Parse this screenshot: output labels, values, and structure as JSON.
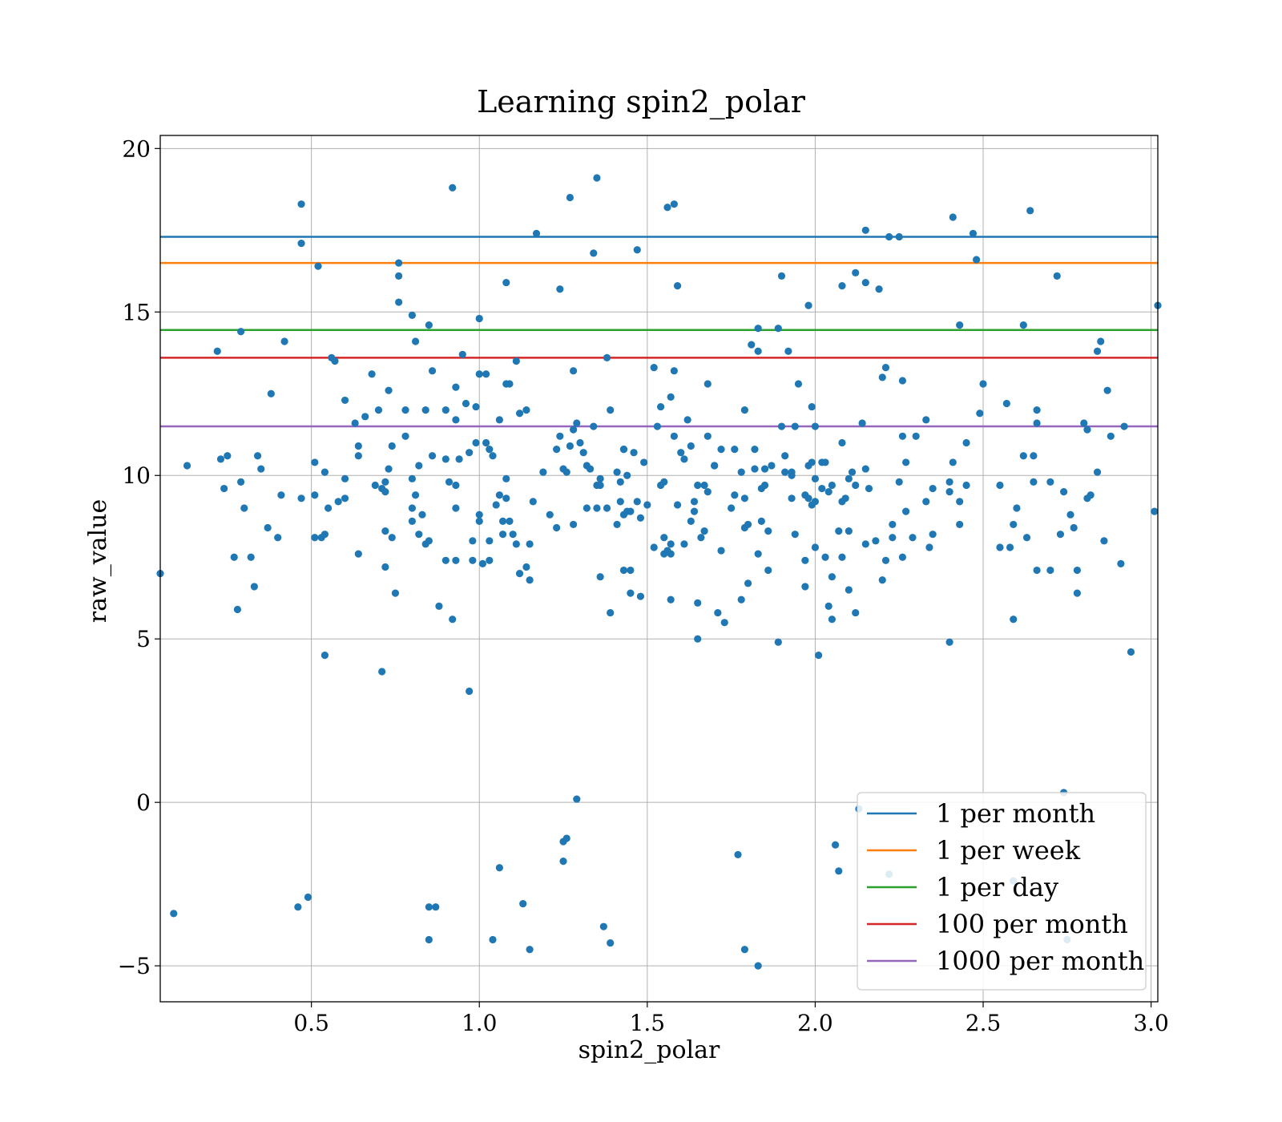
{
  "chart_data": {
    "type": "scatter",
    "title": "Learning spin2_polar",
    "xlabel": "spin2_polar",
    "ylabel": "raw_value",
    "xlim": [
      0.05,
      3.02
    ],
    "ylim": [
      -6.1,
      20.4
    ],
    "xticks": [
      0.5,
      1.0,
      1.5,
      2.0,
      2.5,
      3.0
    ],
    "xtick_labels": [
      "0.5",
      "1.0",
      "1.5",
      "2.0",
      "2.5",
      "3.0"
    ],
    "yticks": [
      -5,
      0,
      5,
      10,
      15,
      20
    ],
    "ytick_labels": [
      "−5",
      "0",
      "5",
      "10",
      "15",
      "20"
    ],
    "grid": true,
    "legend_position": "lower-right",
    "point_color": "#1f77b4",
    "hlines": [
      {
        "name": "1 per month",
        "y": 17.3,
        "color": "#1f77b4"
      },
      {
        "name": "1 per week",
        "y": 16.5,
        "color": "#ff7f0e"
      },
      {
        "name": "1 per day",
        "y": 14.45,
        "color": "#2ca02c"
      },
      {
        "name": "100 per month",
        "y": 13.6,
        "color": "#d62728"
      },
      {
        "name": "1000 per month",
        "y": 11.5,
        "color": "#9467bd"
      }
    ],
    "points": [
      [
        0.05,
        7.0
      ],
      [
        0.09,
        -3.4
      ],
      [
        0.13,
        10.3
      ],
      [
        0.22,
        13.8
      ],
      [
        0.23,
        10.5
      ],
      [
        0.25,
        10.6
      ],
      [
        0.24,
        9.6
      ],
      [
        0.27,
        7.5
      ],
      [
        0.28,
        5.9
      ],
      [
        0.29,
        14.4
      ],
      [
        0.29,
        9.8
      ],
      [
        0.3,
        9.0
      ],
      [
        0.32,
        7.5
      ],
      [
        0.33,
        6.6
      ],
      [
        0.34,
        10.6
      ],
      [
        0.35,
        10.2
      ],
      [
        0.37,
        8.4
      ],
      [
        0.38,
        12.5
      ],
      [
        0.4,
        8.1
      ],
      [
        0.41,
        9.4
      ],
      [
        0.42,
        14.1
      ],
      [
        0.46,
        -3.2
      ],
      [
        0.47,
        9.3
      ],
      [
        0.47,
        18.3
      ],
      [
        0.47,
        17.1
      ],
      [
        0.49,
        -2.9
      ],
      [
        0.51,
        8.1
      ],
      [
        0.51,
        9.4
      ],
      [
        0.51,
        10.4
      ],
      [
        0.52,
        16.4
      ],
      [
        0.53,
        8.1
      ],
      [
        0.54,
        8.2
      ],
      [
        0.54,
        10.1
      ],
      [
        0.54,
        4.5
      ],
      [
        0.55,
        9.0
      ],
      [
        0.56,
        13.6
      ],
      [
        0.57,
        13.5
      ],
      [
        0.58,
        9.2
      ],
      [
        0.6,
        9.3
      ],
      [
        0.6,
        9.9
      ],
      [
        0.6,
        12.3
      ],
      [
        0.63,
        11.6
      ],
      [
        0.64,
        10.9
      ],
      [
        0.64,
        10.6
      ],
      [
        0.64,
        7.6
      ],
      [
        0.66,
        11.8
      ],
      [
        0.68,
        13.1
      ],
      [
        0.69,
        9.7
      ],
      [
        0.7,
        12.0
      ],
      [
        0.71,
        4.0
      ],
      [
        0.71,
        9.6
      ],
      [
        0.72,
        9.8
      ],
      [
        0.72,
        9.5
      ],
      [
        0.72,
        8.3
      ],
      [
        0.72,
        7.2
      ],
      [
        0.73,
        10.2
      ],
      [
        0.73,
        12.6
      ],
      [
        0.74,
        8.1
      ],
      [
        0.74,
        10.9
      ],
      [
        0.75,
        6.4
      ],
      [
        0.76,
        16.5
      ],
      [
        0.76,
        16.1
      ],
      [
        0.76,
        15.3
      ],
      [
        0.78,
        12.0
      ],
      [
        0.78,
        11.2
      ],
      [
        0.8,
        14.9
      ],
      [
        0.8,
        9.9
      ],
      [
        0.8,
        9.0
      ],
      [
        0.8,
        8.6
      ],
      [
        0.81,
        9.4
      ],
      [
        0.81,
        14.1
      ],
      [
        0.82,
        8.2
      ],
      [
        0.82,
        10.3
      ],
      [
        0.83,
        8.8
      ],
      [
        0.84,
        7.9
      ],
      [
        0.84,
        12.0
      ],
      [
        0.85,
        -3.2
      ],
      [
        0.85,
        -4.2
      ],
      [
        0.85,
        14.6
      ],
      [
        0.85,
        8.0
      ],
      [
        0.86,
        13.2
      ],
      [
        0.86,
        10.6
      ],
      [
        0.87,
        -3.2
      ],
      [
        0.88,
        6.0
      ],
      [
        0.9,
        7.4
      ],
      [
        0.9,
        10.5
      ],
      [
        0.9,
        12.0
      ],
      [
        0.91,
        9.8
      ],
      [
        0.92,
        18.8
      ],
      [
        0.92,
        5.6
      ],
      [
        0.93,
        11.7
      ],
      [
        0.93,
        12.7
      ],
      [
        0.93,
        9.7
      ],
      [
        0.93,
        9.0
      ],
      [
        0.93,
        7.4
      ],
      [
        0.94,
        10.5
      ],
      [
        0.95,
        13.7
      ],
      [
        0.96,
        12.2
      ],
      [
        0.97,
        3.4
      ],
      [
        0.97,
        10.7
      ],
      [
        0.98,
        8.0
      ],
      [
        0.98,
        7.4
      ],
      [
        0.99,
        11.0
      ],
      [
        0.99,
        12.1
      ],
      [
        1.0,
        14.8
      ],
      [
        1.0,
        13.1
      ],
      [
        1.0,
        8.8
      ],
      [
        1.0,
        8.6
      ],
      [
        1.01,
        7.3
      ],
      [
        1.02,
        13.1
      ],
      [
        1.02,
        11.0
      ],
      [
        1.03,
        10.8
      ],
      [
        1.03,
        8.0
      ],
      [
        1.03,
        7.4
      ],
      [
        1.04,
        -4.2
      ],
      [
        1.04,
        10.6
      ],
      [
        1.05,
        9.1
      ],
      [
        1.06,
        -2.0
      ],
      [
        1.06,
        9.4
      ],
      [
        1.06,
        11.7
      ],
      [
        1.07,
        8.6
      ],
      [
        1.07,
        8.2
      ],
      [
        1.08,
        15.9
      ],
      [
        1.08,
        12.8
      ],
      [
        1.08,
        9.9
      ],
      [
        1.08,
        9.3
      ],
      [
        1.09,
        8.6
      ],
      [
        1.09,
        12.8
      ],
      [
        1.1,
        8.2
      ],
      [
        1.11,
        13.5
      ],
      [
        1.11,
        7.9
      ],
      [
        1.12,
        11.9
      ],
      [
        1.12,
        7.0
      ],
      [
        1.13,
        -3.1
      ],
      [
        1.14,
        12.0
      ],
      [
        1.14,
        7.2
      ],
      [
        1.15,
        7.9
      ],
      [
        1.15,
        6.8
      ],
      [
        1.15,
        -4.5
      ],
      [
        1.16,
        9.2
      ],
      [
        1.17,
        17.4
      ],
      [
        1.19,
        10.1
      ],
      [
        1.21,
        8.8
      ],
      [
        1.23,
        10.8
      ],
      [
        1.23,
        8.4
      ],
      [
        1.24,
        15.7
      ],
      [
        1.24,
        11.2
      ],
      [
        1.25,
        10.2
      ],
      [
        1.25,
        -1.2
      ],
      [
        1.25,
        -1.8
      ],
      [
        1.26,
        -1.1
      ],
      [
        1.26,
        10.1
      ],
      [
        1.27,
        18.5
      ],
      [
        1.27,
        10.9
      ],
      [
        1.28,
        13.2
      ],
      [
        1.28,
        11.4
      ],
      [
        1.28,
        8.5
      ],
      [
        1.29,
        0.1
      ],
      [
        1.29,
        11.6
      ],
      [
        1.3,
        11.0
      ],
      [
        1.31,
        10.7
      ],
      [
        1.32,
        10.3
      ],
      [
        1.32,
        9.0
      ],
      [
        1.33,
        10.2
      ],
      [
        1.34,
        16.8
      ],
      [
        1.34,
        11.5
      ],
      [
        1.35,
        19.1
      ],
      [
        1.35,
        9.7
      ],
      [
        1.35,
        9.0
      ],
      [
        1.36,
        9.7
      ],
      [
        1.36,
        9.9
      ],
      [
        1.36,
        6.9
      ],
      [
        1.37,
        -3.8
      ],
      [
        1.38,
        13.6
      ],
      [
        1.38,
        9.0
      ],
      [
        1.39,
        -4.3
      ],
      [
        1.39,
        5.8
      ],
      [
        1.39,
        12.0
      ],
      [
        1.41,
        8.5
      ],
      [
        1.41,
        10.1
      ],
      [
        1.42,
        9.2
      ],
      [
        1.42,
        9.8
      ],
      [
        1.43,
        10.8
      ],
      [
        1.43,
        10.8
      ],
      [
        1.43,
        8.8
      ],
      [
        1.43,
        7.1
      ],
      [
        1.44,
        8.9
      ],
      [
        1.44,
        10.0
      ],
      [
        1.45,
        7.1
      ],
      [
        1.45,
        8.9
      ],
      [
        1.45,
        6.4
      ],
      [
        1.46,
        10.7
      ],
      [
        1.47,
        16.9
      ],
      [
        1.47,
        9.2
      ],
      [
        1.48,
        6.3
      ],
      [
        1.48,
        8.7
      ],
      [
        1.49,
        10.4
      ],
      [
        1.5,
        9.1
      ],
      [
        1.52,
        13.3
      ],
      [
        1.52,
        7.8
      ],
      [
        1.53,
        11.5
      ],
      [
        1.54,
        9.7
      ],
      [
        1.54,
        12.1
      ],
      [
        1.55,
        9.8
      ],
      [
        1.55,
        8.1
      ],
      [
        1.55,
        7.6
      ],
      [
        1.56,
        18.2
      ],
      [
        1.56,
        7.7
      ],
      [
        1.57,
        6.2
      ],
      [
        1.57,
        7.9
      ],
      [
        1.57,
        7.6
      ],
      [
        1.57,
        12.4
      ],
      [
        1.58,
        13.2
      ],
      [
        1.58,
        18.3
      ],
      [
        1.58,
        11.2
      ],
      [
        1.59,
        15.8
      ],
      [
        1.59,
        9.1
      ],
      [
        1.6,
        10.7
      ],
      [
        1.61,
        10.5
      ],
      [
        1.61,
        7.9
      ],
      [
        1.62,
        11.7
      ],
      [
        1.63,
        8.6
      ],
      [
        1.63,
        10.9
      ],
      [
        1.64,
        9.2
      ],
      [
        1.64,
        8.9
      ],
      [
        1.65,
        5.0
      ],
      [
        1.65,
        6.1
      ],
      [
        1.65,
        9.7
      ],
      [
        1.66,
        8.1
      ],
      [
        1.67,
        9.7
      ],
      [
        1.67,
        8.3
      ],
      [
        1.68,
        12.8
      ],
      [
        1.68,
        11.2
      ],
      [
        1.68,
        9.5
      ],
      [
        1.7,
        10.3
      ],
      [
        1.7,
        10.3
      ],
      [
        1.71,
        5.8
      ],
      [
        1.72,
        7.7
      ],
      [
        1.72,
        10.8
      ],
      [
        1.73,
        5.5
      ],
      [
        1.75,
        9.0
      ],
      [
        1.76,
        9.4
      ],
      [
        1.76,
        10.8
      ],
      [
        1.77,
        -1.6
      ],
      [
        1.78,
        10.1
      ],
      [
        1.78,
        6.2
      ],
      [
        1.79,
        12.0
      ],
      [
        1.79,
        8.4
      ],
      [
        1.79,
        9.3
      ],
      [
        1.79,
        -4.5
      ],
      [
        1.8,
        6.7
      ],
      [
        1.8,
        8.5
      ],
      [
        1.81,
        14.0
      ],
      [
        1.82,
        10.2
      ],
      [
        1.82,
        10.8
      ],
      [
        1.83,
        13.8
      ],
      [
        1.83,
        14.5
      ],
      [
        1.83,
        -5.0
      ],
      [
        1.83,
        7.6
      ],
      [
        1.84,
        9.6
      ],
      [
        1.84,
        8.6
      ],
      [
        1.85,
        10.2
      ],
      [
        1.85,
        9.7
      ],
      [
        1.86,
        8.3
      ],
      [
        1.86,
        7.1
      ],
      [
        1.87,
        10.3
      ],
      [
        1.89,
        14.5
      ],
      [
        1.89,
        4.9
      ],
      [
        1.9,
        11.5
      ],
      [
        1.9,
        16.1
      ],
      [
        1.91,
        10.1
      ],
      [
        1.91,
        10.6
      ],
      [
        1.92,
        13.8
      ],
      [
        1.93,
        9.3
      ],
      [
        1.93,
        10.0
      ],
      [
        1.93,
        10.1
      ],
      [
        1.94,
        11.5
      ],
      [
        1.94,
        8.2
      ],
      [
        1.95,
        12.8
      ],
      [
        1.97,
        9.4
      ],
      [
        1.97,
        6.6
      ],
      [
        1.97,
        7.4
      ],
      [
        1.98,
        10.3
      ],
      [
        1.98,
        9.3
      ],
      [
        1.98,
        15.2
      ],
      [
        1.99,
        12.1
      ],
      [
        1.99,
        9.1
      ],
      [
        1.99,
        10.4
      ],
      [
        2.0,
        11.5
      ],
      [
        2.0,
        9.9
      ],
      [
        2.0,
        9.2
      ],
      [
        2.0,
        7.8
      ],
      [
        2.01,
        4.5
      ],
      [
        2.02,
        10.4
      ],
      [
        2.02,
        9.6
      ],
      [
        2.03,
        7.5
      ],
      [
        2.03,
        10.4
      ],
      [
        2.04,
        6.0
      ],
      [
        2.04,
        9.5
      ],
      [
        2.05,
        5.6
      ],
      [
        2.05,
        9.7
      ],
      [
        2.05,
        6.9
      ],
      [
        2.06,
        -1.3
      ],
      [
        2.07,
        -2.1
      ],
      [
        2.07,
        8.3
      ],
      [
        2.08,
        7.5
      ],
      [
        2.08,
        11.0
      ],
      [
        2.08,
        9.2
      ],
      [
        2.08,
        15.8
      ],
      [
        2.09,
        9.3
      ],
      [
        2.1,
        8.3
      ],
      [
        2.1,
        6.5
      ],
      [
        2.1,
        9.9
      ],
      [
        2.11,
        10.1
      ],
      [
        2.12,
        16.2
      ],
      [
        2.12,
        5.8
      ],
      [
        2.12,
        9.7
      ],
      [
        2.13,
        -0.2
      ],
      [
        2.14,
        11.6
      ],
      [
        2.15,
        15.9
      ],
      [
        2.15,
        10.2
      ],
      [
        2.15,
        7.9
      ],
      [
        2.15,
        17.5
      ],
      [
        2.16,
        9.6
      ],
      [
        2.18,
        8.0
      ],
      [
        2.19,
        15.7
      ],
      [
        2.2,
        6.8
      ],
      [
        2.2,
        13.0
      ],
      [
        2.21,
        13.3
      ],
      [
        2.21,
        7.4
      ],
      [
        2.22,
        17.3
      ],
      [
        2.22,
        -2.2
      ],
      [
        2.23,
        8.5
      ],
      [
        2.23,
        8.1
      ],
      [
        2.25,
        17.3
      ],
      [
        2.25,
        9.8
      ],
      [
        2.26,
        12.9
      ],
      [
        2.26,
        7.5
      ],
      [
        2.26,
        11.2
      ],
      [
        2.27,
        10.4
      ],
      [
        2.27,
        8.9
      ],
      [
        2.29,
        8.1
      ],
      [
        2.3,
        11.2
      ],
      [
        2.33,
        11.7
      ],
      [
        2.33,
        9.2
      ],
      [
        2.34,
        7.8
      ],
      [
        2.35,
        8.2
      ],
      [
        2.35,
        9.6
      ],
      [
        2.4,
        4.9
      ],
      [
        2.4,
        9.8
      ],
      [
        2.4,
        9.5
      ],
      [
        2.41,
        17.9
      ],
      [
        2.41,
        10.4
      ],
      [
        2.43,
        14.6
      ],
      [
        2.43,
        8.5
      ],
      [
        2.43,
        9.2
      ],
      [
        2.45,
        11.0
      ],
      [
        2.45,
        9.7
      ],
      [
        2.47,
        17.4
      ],
      [
        2.48,
        16.6
      ],
      [
        2.49,
        11.9
      ],
      [
        2.5,
        12.8
      ],
      [
        2.55,
        9.7
      ],
      [
        2.55,
        7.8
      ],
      [
        2.57,
        12.2
      ],
      [
        2.58,
        7.8
      ],
      [
        2.59,
        -2.4
      ],
      [
        2.59,
        8.5
      ],
      [
        2.59,
        5.6
      ],
      [
        2.6,
        9.0
      ],
      [
        2.62,
        10.6
      ],
      [
        2.62,
        14.6
      ],
      [
        2.63,
        8.1
      ],
      [
        2.64,
        18.1
      ],
      [
        2.65,
        10.6
      ],
      [
        2.65,
        9.8
      ],
      [
        2.66,
        12.0
      ],
      [
        2.66,
        11.6
      ],
      [
        2.66,
        7.1
      ],
      [
        2.7,
        9.8
      ],
      [
        2.7,
        7.1
      ],
      [
        2.72,
        16.1
      ],
      [
        2.73,
        8.2
      ],
      [
        2.74,
        0.3
      ],
      [
        2.74,
        9.5
      ],
      [
        2.75,
        -4.2
      ],
      [
        2.76,
        8.8
      ],
      [
        2.77,
        8.4
      ],
      [
        2.78,
        6.4
      ],
      [
        2.78,
        7.1
      ],
      [
        2.8,
        11.6
      ],
      [
        2.81,
        9.3
      ],
      [
        2.81,
        11.4
      ],
      [
        2.82,
        9.4
      ],
      [
        2.84,
        10.1
      ],
      [
        2.84,
        13.8
      ],
      [
        2.85,
        14.1
      ],
      [
        2.86,
        8.0
      ],
      [
        2.87,
        12.6
      ],
      [
        2.88,
        11.2
      ],
      [
        2.91,
        7.3
      ],
      [
        2.92,
        11.5
      ],
      [
        2.94,
        4.6
      ],
      [
        3.01,
        8.9
      ],
      [
        3.02,
        15.2
      ]
    ]
  }
}
